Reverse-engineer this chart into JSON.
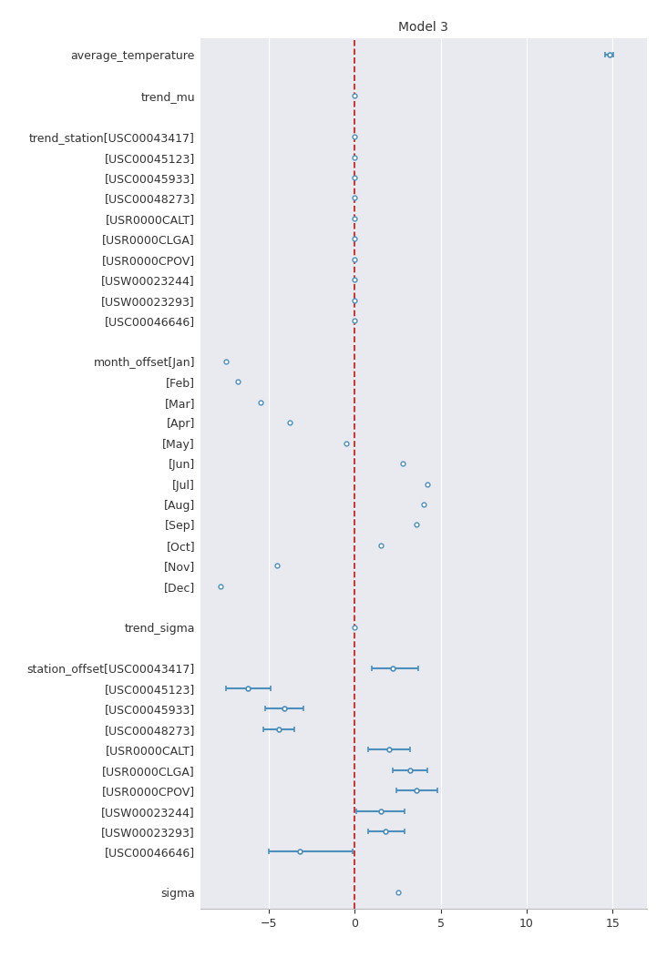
{
  "title": "Model 3",
  "xlim": [
    -9,
    17
  ],
  "xticks": [
    -5,
    0,
    5,
    10,
    15
  ],
  "background_color": "#e8eaf0",
  "params": [
    {
      "label": "average_temperature",
      "mean": 14.8,
      "lo": 14.55,
      "hi": 15.05,
      "group": "interval"
    },
    {
      "label": "",
      "mean": null,
      "lo": null,
      "hi": null,
      "group": "spacer"
    },
    {
      "label": "trend_mu",
      "mean": 0.0,
      "lo": 0.0,
      "hi": 0.0,
      "group": "dot_only"
    },
    {
      "label": "",
      "mean": null,
      "lo": null,
      "hi": null,
      "group": "spacer"
    },
    {
      "label": "trend_station[USC00043417]",
      "mean": 0.0,
      "lo": 0.0,
      "hi": 0.0,
      "group": "dot_only"
    },
    {
      "label": "[USC00045123]",
      "mean": 0.0,
      "lo": 0.0,
      "hi": 0.0,
      "group": "dot_only"
    },
    {
      "label": "[USC00045933]",
      "mean": 0.0,
      "lo": 0.0,
      "hi": 0.0,
      "group": "dot_only"
    },
    {
      "label": "[USC00048273]",
      "mean": 0.0,
      "lo": 0.0,
      "hi": 0.0,
      "group": "dot_only"
    },
    {
      "label": "[USR0000CALT]",
      "mean": 0.0,
      "lo": 0.0,
      "hi": 0.0,
      "group": "dot_only"
    },
    {
      "label": "[USR0000CLGA]",
      "mean": 0.0,
      "lo": 0.0,
      "hi": 0.0,
      "group": "dot_only"
    },
    {
      "label": "[USR0000CPOV]",
      "mean": 0.0,
      "lo": 0.0,
      "hi": 0.0,
      "group": "dot_only"
    },
    {
      "label": "[USW00023244]",
      "mean": 0.0,
      "lo": 0.0,
      "hi": 0.0,
      "group": "dot_only"
    },
    {
      "label": "[USW00023293]",
      "mean": 0.0,
      "lo": 0.0,
      "hi": 0.0,
      "group": "dot_only"
    },
    {
      "label": "[USC00046646]",
      "mean": 0.0,
      "lo": 0.0,
      "hi": 0.0,
      "group": "dot_only"
    },
    {
      "label": "",
      "mean": null,
      "lo": null,
      "hi": null,
      "group": "spacer"
    },
    {
      "label": "month_offset[Jan]",
      "mean": -7.5,
      "lo": -7.5,
      "hi": -7.5,
      "group": "dot_only"
    },
    {
      "label": "[Feb]",
      "mean": -6.8,
      "lo": -6.8,
      "hi": -6.8,
      "group": "dot_only"
    },
    {
      "label": "[Mar]",
      "mean": -5.5,
      "lo": -5.5,
      "hi": -5.5,
      "group": "dot_only"
    },
    {
      "label": "[Apr]",
      "mean": -3.8,
      "lo": -3.8,
      "hi": -3.8,
      "group": "dot_only"
    },
    {
      "label": "[May]",
      "mean": -0.5,
      "lo": -0.5,
      "hi": -0.5,
      "group": "dot_only"
    },
    {
      "label": "[Jun]",
      "mean": 2.8,
      "lo": 2.8,
      "hi": 2.8,
      "group": "dot_only"
    },
    {
      "label": "[Jul]",
      "mean": 4.2,
      "lo": 4.2,
      "hi": 4.2,
      "group": "dot_only"
    },
    {
      "label": "[Aug]",
      "mean": 4.0,
      "lo": 4.0,
      "hi": 4.0,
      "group": "dot_only"
    },
    {
      "label": "[Sep]",
      "mean": 3.6,
      "lo": 3.6,
      "hi": 3.6,
      "group": "dot_only"
    },
    {
      "label": "[Oct]",
      "mean": 1.5,
      "lo": 1.5,
      "hi": 1.5,
      "group": "dot_only"
    },
    {
      "label": "[Nov]",
      "mean": -4.5,
      "lo": -4.5,
      "hi": -4.5,
      "group": "dot_only"
    },
    {
      "label": "[Dec]",
      "mean": -7.8,
      "lo": -7.8,
      "hi": -7.8,
      "group": "dot_only"
    },
    {
      "label": "",
      "mean": null,
      "lo": null,
      "hi": null,
      "group": "spacer"
    },
    {
      "label": "trend_sigma",
      "mean": 0.0,
      "lo": 0.0,
      "hi": 0.0,
      "group": "dot_only"
    },
    {
      "label": "",
      "mean": null,
      "lo": null,
      "hi": null,
      "group": "spacer"
    },
    {
      "label": "station_offset[USC00043417]",
      "mean": 2.2,
      "lo": 1.0,
      "hi": 3.7,
      "group": "interval"
    },
    {
      "label": "[USC00045123]",
      "mean": -6.2,
      "lo": -7.5,
      "hi": -4.9,
      "group": "interval"
    },
    {
      "label": "[USC00045933]",
      "mean": -4.1,
      "lo": -5.2,
      "hi": -3.0,
      "group": "interval"
    },
    {
      "label": "[USC00048273]",
      "mean": -4.4,
      "lo": -5.3,
      "hi": -3.5,
      "group": "interval"
    },
    {
      "label": "[USR0000CALT]",
      "mean": 2.0,
      "lo": 0.8,
      "hi": 3.2,
      "group": "interval"
    },
    {
      "label": "[USR0000CLGA]",
      "mean": 3.2,
      "lo": 2.2,
      "hi": 4.2,
      "group": "interval"
    },
    {
      "label": "[USR0000CPOV]",
      "mean": 3.6,
      "lo": 2.4,
      "hi": 4.8,
      "group": "interval"
    },
    {
      "label": "[USW00023244]",
      "mean": 1.5,
      "lo": 0.1,
      "hi": 2.9,
      "group": "interval"
    },
    {
      "label": "[USW00023293]",
      "mean": 1.8,
      "lo": 0.8,
      "hi": 2.9,
      "group": "interval"
    },
    {
      "label": "[USC00046646]",
      "mean": -3.2,
      "lo": -5.0,
      "hi": -0.15,
      "group": "interval"
    },
    {
      "label": "",
      "mean": null,
      "lo": null,
      "hi": null,
      "group": "spacer"
    },
    {
      "label": "sigma",
      "mean": 2.5,
      "lo": 2.5,
      "hi": 2.5,
      "group": "dot_only"
    }
  ],
  "dot_color": "#4c8fbd",
  "line_color": "#4c8fbd",
  "ref_line_color": "#cc2222",
  "text_color": "#333333",
  "label_fontsize": 9.0,
  "title_fontsize": 10.0
}
